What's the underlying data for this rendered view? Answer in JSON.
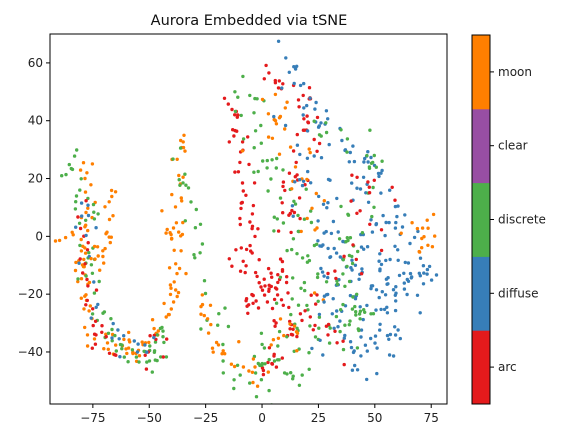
{
  "chart_data": {
    "type": "scatter",
    "title": "Aurora Embedded via tSNE",
    "xlabel": "",
    "ylabel": "",
    "xlim": [
      -94,
      82
    ],
    "ylim": [
      -58,
      70
    ],
    "x_ticks": [
      -75,
      -50,
      -25,
      0,
      25,
      50,
      75
    ],
    "x_tick_labels": [
      "−75",
      "−50",
      "−25",
      "0",
      "25",
      "50",
      "75"
    ],
    "y_ticks": [
      -40,
      -20,
      0,
      20,
      40,
      60
    ],
    "y_tick_labels": [
      "−40",
      "−20",
      "0",
      "20",
      "40",
      "60"
    ],
    "grid": false,
    "colorbar": {
      "placement": "right",
      "categories": [
        {
          "label": "arc",
          "color": "#e41a1c"
        },
        {
          "label": "diffuse",
          "color": "#377eb8"
        },
        {
          "label": "discrete",
          "color": "#4daf4a"
        },
        {
          "label": "clear",
          "color": "#984ea3"
        },
        {
          "label": "moon",
          "color": "#ff7f00"
        }
      ]
    },
    "clusters": [
      {
        "class": "moon",
        "n": 120,
        "path": [
          [
            -80,
            27
          ],
          [
            -77,
            12
          ],
          [
            -81,
            -6
          ],
          [
            -78,
            -22
          ],
          [
            -74,
            -36
          ],
          [
            -68,
            -38
          ],
          [
            -62,
            -36
          ],
          [
            -56,
            -41
          ],
          [
            -50,
            -37
          ],
          [
            -44,
            -31
          ],
          [
            -40,
            -20
          ],
          [
            -38,
            -5
          ],
          [
            -40,
            10
          ],
          [
            -37,
            25
          ],
          [
            -34,
            33
          ]
        ],
        "spread": 2.2
      },
      {
        "class": "discrete",
        "n": 70,
        "path": [
          [
            -86,
            27
          ],
          [
            -81,
            20
          ],
          [
            -76,
            6
          ],
          [
            -78,
            -10
          ],
          [
            -72,
            -20
          ],
          [
            -70,
            -32
          ],
          [
            -60,
            -40
          ],
          [
            -52,
            -44
          ],
          [
            -46,
            -40
          ],
          [
            -42,
            -32
          ]
        ],
        "spread": 2.4
      },
      {
        "class": "arc",
        "n": 35,
        "path": [
          [
            -80,
            10
          ],
          [
            -78,
            -15
          ],
          [
            -72,
            -35
          ],
          [
            -65,
            -40
          ],
          [
            -50,
            -42
          ],
          [
            -42,
            -30
          ]
        ],
        "spread": 2.0
      },
      {
        "class": "diffuse",
        "n": 25,
        "path": [
          [
            -82,
            15
          ],
          [
            -76,
            -10
          ],
          [
            -70,
            -30
          ],
          [
            -58,
            -40
          ],
          [
            -45,
            -36
          ]
        ],
        "spread": 2.0
      },
      {
        "class": "moon",
        "n": 30,
        "path": [
          [
            -89,
            -4
          ],
          [
            -87,
            0
          ],
          [
            -82,
            4
          ],
          [
            -70,
            -10
          ],
          [
            -66,
            16
          ]
        ],
        "spread": 1.6
      },
      {
        "class": "discrete",
        "n": 30,
        "path": [
          [
            -40,
            32
          ],
          [
            -30,
            10
          ],
          [
            -27,
            -5
          ],
          [
            -23,
            -20
          ],
          [
            -20,
            -36
          ],
          [
            -17,
            -44
          ],
          [
            -12,
            -48
          ]
        ],
        "spread": 3.0
      },
      {
        "class": "moon",
        "n": 25,
        "path": [
          [
            -28,
            -20
          ],
          [
            -22,
            -40
          ],
          [
            -16,
            -42
          ],
          [
            -8,
            -45
          ],
          [
            -4,
            -50
          ]
        ],
        "spread": 2.2
      },
      {
        "class": "arc",
        "n": 120,
        "path": [
          [
            -12,
            45
          ],
          [
            -10,
            30
          ],
          [
            -7,
            18
          ],
          [
            -6,
            4
          ],
          [
            -8,
            -10
          ],
          [
            -5,
            -20
          ],
          [
            -2,
            -28
          ],
          [
            2,
            -18
          ],
          [
            5,
            -8
          ],
          [
            10,
            -15
          ],
          [
            12,
            -25
          ],
          [
            10,
            -36
          ],
          [
            5,
            -42
          ],
          [
            0,
            -47
          ]
        ],
        "spread": 2.8
      },
      {
        "class": "arc",
        "n": 50,
        "path": [
          [
            0,
            60
          ],
          [
            5,
            55
          ],
          [
            10,
            50
          ],
          [
            15,
            54
          ],
          [
            20,
            50
          ],
          [
            18,
            35
          ],
          [
            14,
            20
          ],
          [
            10,
            5
          ]
        ],
        "spread": 3.2
      },
      {
        "class": "discrete",
        "n": 110,
        "path": [
          [
            -12,
            48
          ],
          [
            -5,
            40
          ],
          [
            0,
            30
          ],
          [
            5,
            20
          ],
          [
            12,
            10
          ],
          [
            20,
            0
          ],
          [
            15,
            -10
          ],
          [
            22,
            -28
          ],
          [
            18,
            -38
          ],
          [
            10,
            -42
          ],
          [
            0,
            -48
          ],
          [
            -10,
            -47
          ]
        ],
        "spread": 5.5
      },
      {
        "class": "moon",
        "n": 45,
        "path": [
          [
            -8,
            42
          ],
          [
            0,
            35
          ],
          [
            5,
            46
          ],
          [
            12,
            30
          ],
          [
            18,
            20
          ],
          [
            22,
            10
          ],
          [
            28,
            -5
          ],
          [
            15,
            -30
          ],
          [
            5,
            -38
          ],
          [
            -5,
            -42
          ]
        ],
        "spread": 4.5
      },
      {
        "class": "diffuse",
        "n": 250,
        "path": [
          [
            12,
            60
          ],
          [
            20,
            48
          ],
          [
            25,
            38
          ],
          [
            32,
            34
          ],
          [
            40,
            30
          ],
          [
            48,
            22
          ],
          [
            52,
            10
          ],
          [
            56,
            0
          ],
          [
            62,
            -8
          ],
          [
            72,
            -12
          ],
          [
            65,
            -20
          ],
          [
            56,
            -18
          ],
          [
            48,
            -12
          ],
          [
            40,
            -5
          ],
          [
            32,
            -18
          ],
          [
            28,
            -30
          ],
          [
            35,
            -38
          ],
          [
            45,
            -42
          ],
          [
            52,
            -38
          ],
          [
            58,
            -25
          ],
          [
            50,
            -28
          ],
          [
            42,
            -22
          ],
          [
            36,
            -10
          ],
          [
            30,
            0
          ],
          [
            25,
            15
          ],
          [
            18,
            30
          ]
        ],
        "spread": 4.8
      },
      {
        "class": "discrete",
        "n": 70,
        "path": [
          [
            25,
            40
          ],
          [
            35,
            35
          ],
          [
            42,
            28
          ],
          [
            48,
            18
          ],
          [
            45,
            5
          ],
          [
            38,
            -8
          ],
          [
            33,
            -20
          ],
          [
            30,
            -33
          ],
          [
            38,
            -25
          ],
          [
            48,
            -30
          ]
        ],
        "spread": 4.2
      },
      {
        "class": "arc",
        "n": 35,
        "path": [
          [
            40,
            22
          ],
          [
            48,
            18
          ],
          [
            52,
            10
          ],
          [
            45,
            -5
          ],
          [
            28,
            -18
          ],
          [
            25,
            -28
          ],
          [
            32,
            -40
          ]
        ],
        "spread": 4.0
      },
      {
        "class": "moon",
        "n": 15,
        "path": [
          [
            62,
            0
          ],
          [
            72,
            5
          ],
          [
            74,
            -3
          ],
          [
            76,
            0
          ],
          [
            64,
            -15
          ]
        ],
        "spread": 2.5
      }
    ]
  }
}
